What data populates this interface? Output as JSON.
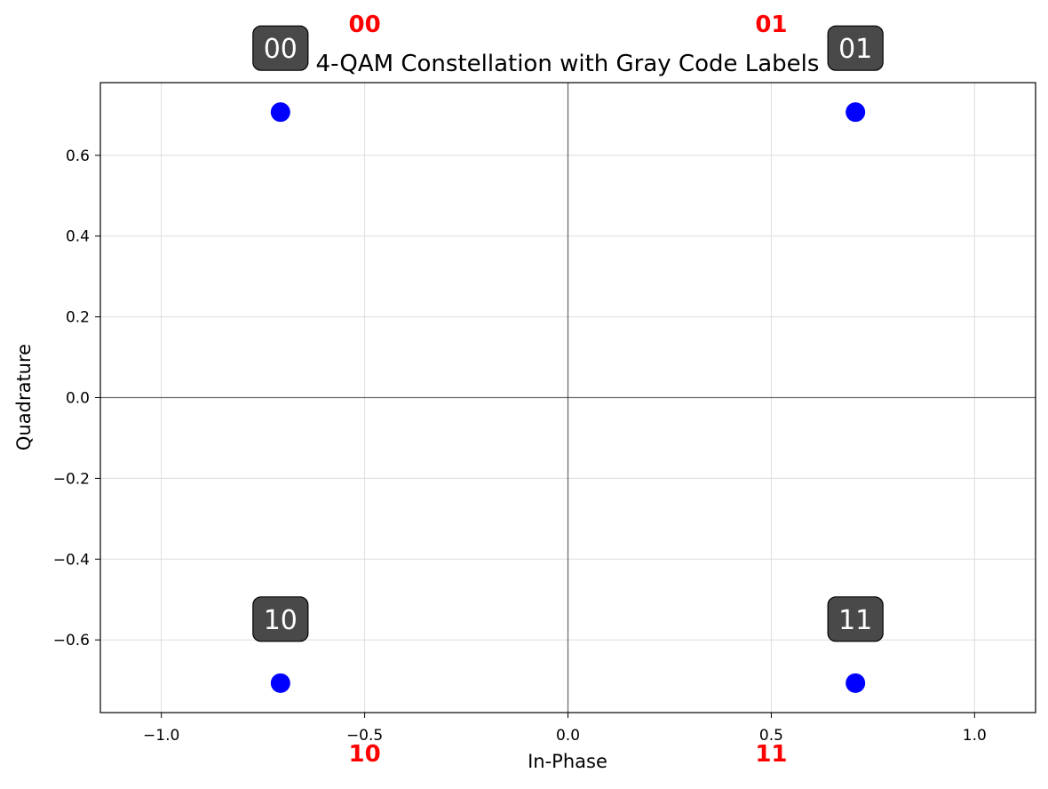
{
  "chart_data": {
    "type": "scatter",
    "title": "4-QAM Constellation with Gray Code Labels",
    "xlabel": "In-Phase",
    "ylabel": "Quadrature",
    "xlim": [
      -1.15,
      1.15
    ],
    "ylim": [
      -0.78,
      0.78
    ],
    "xticks": [
      {
        "value": -1.0,
        "label": "−1.0"
      },
      {
        "value": -0.5,
        "label": "−0.5"
      },
      {
        "value": 0.0,
        "label": "0.0"
      },
      {
        "value": 0.5,
        "label": "0.5"
      },
      {
        "value": 1.0,
        "label": "1.0"
      }
    ],
    "yticks": [
      {
        "value": 0.6,
        "label": "0.6"
      },
      {
        "value": 0.4,
        "label": "0.4"
      },
      {
        "value": 0.2,
        "label": "0.2"
      },
      {
        "value": 0.0,
        "label": "0.0"
      },
      {
        "value": -0.2,
        "label": "−0.2"
      },
      {
        "value": -0.4,
        "label": "−0.4"
      },
      {
        "value": -0.6,
        "label": "−0.6"
      }
    ],
    "grid": true,
    "points": [
      {
        "x": -0.707,
        "y": 0.707,
        "label": "00"
      },
      {
        "x": 0.707,
        "y": 0.707,
        "label": "01"
      },
      {
        "x": -0.707,
        "y": -0.707,
        "label": "10"
      },
      {
        "x": 0.707,
        "y": -0.707,
        "label": "11"
      }
    ],
    "quadrant_labels": [
      {
        "x": -0.5,
        "y": 0.9,
        "label": "00"
      },
      {
        "x": 0.5,
        "y": 0.9,
        "label": "01"
      },
      {
        "x": -0.5,
        "y": -0.9,
        "label": "10"
      },
      {
        "x": 0.5,
        "y": -0.9,
        "label": "11"
      }
    ],
    "colors": {
      "points": "#0000ff",
      "quadrant_labels": "#ff0000",
      "point_label_box": "#3a3a3a",
      "point_label_text": "#ffffff",
      "axes_lines": "#000000",
      "grid": "#dddddd"
    }
  }
}
